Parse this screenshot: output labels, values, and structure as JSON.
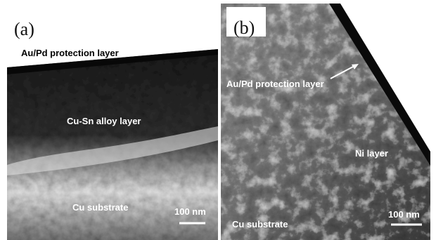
{
  "panels": [
    {
      "label": "(a)",
      "annotations": [
        "Au/Pd protection layer",
        "Cu-Sn alloy layer",
        "Cu substrate"
      ],
      "scale_bar": "100 nm"
    },
    {
      "label": "(b)",
      "annotations": [
        "Au/Pd protection layer",
        "Ni layer",
        "Cu substrate"
      ],
      "scale_bar": "100 nm"
    }
  ]
}
